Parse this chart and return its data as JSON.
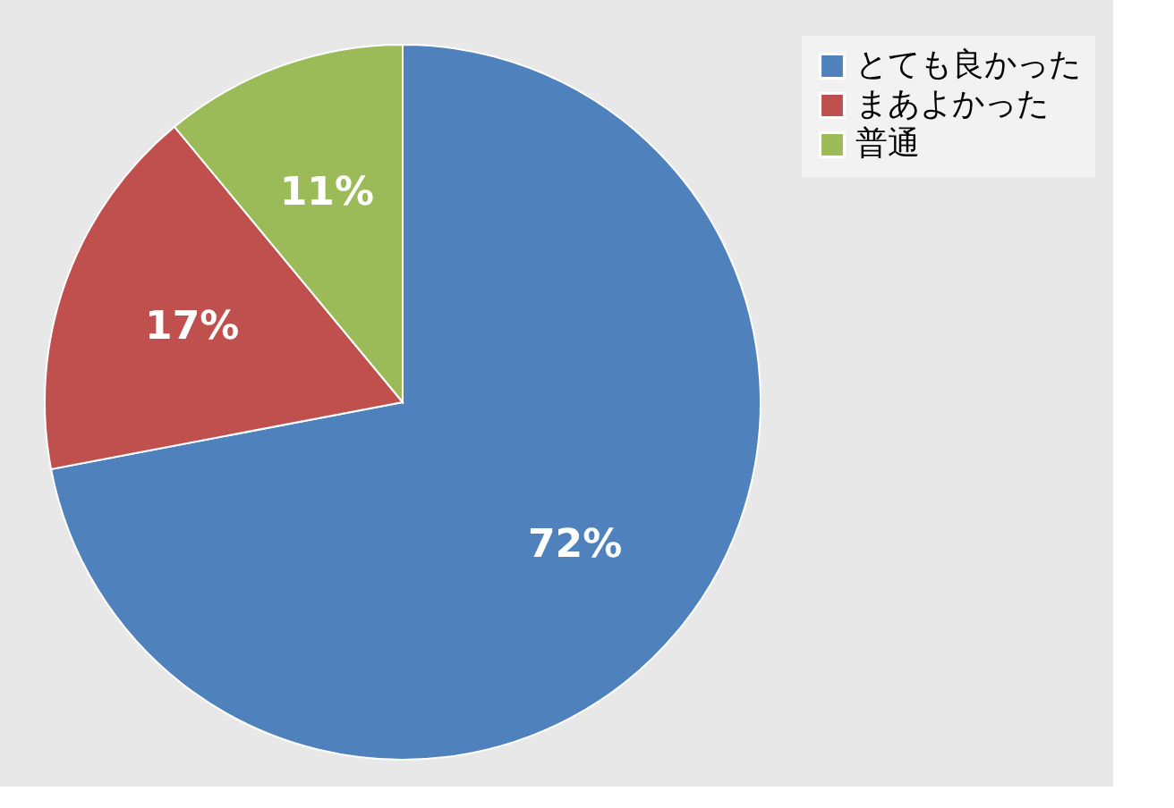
{
  "chart_data": {
    "type": "pie",
    "categories": [
      "とても良かった",
      "まあよかった",
      "普通"
    ],
    "values": [
      72,
      17,
      11
    ],
    "colors": [
      "#4f81bd",
      "#c0504d",
      "#9bbb59"
    ],
    "value_labels": [
      "72%",
      "17%",
      "11%"
    ],
    "legend": "right"
  }
}
